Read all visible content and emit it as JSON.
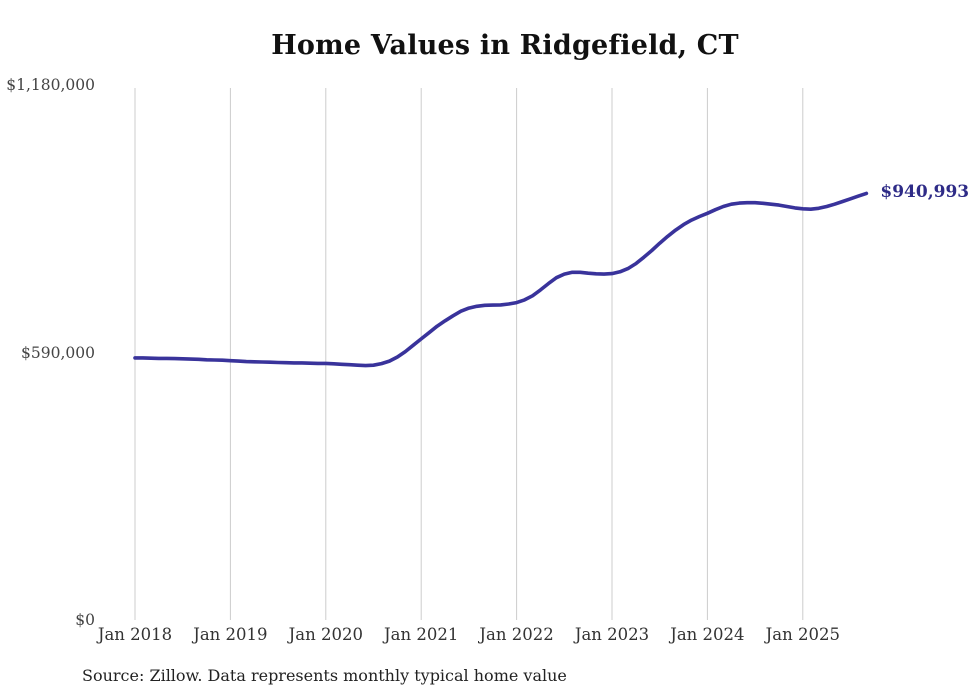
{
  "source_note": "Source: Zillow. Data represents monthly typical home value",
  "colors": {
    "line": "#39339b",
    "annotation": "#2e2b87",
    "grid": "#cccccc",
    "title_text": "#111111",
    "axis_text": "#444444"
  },
  "chart_data": {
    "type": "line",
    "title": "Home Values in Ridgefield, CT",
    "xlabel": "",
    "ylabel": "",
    "ylim": [
      0,
      1180000
    ],
    "grid": "vertical-only",
    "legend": "none",
    "x_ticks": [
      "Jan 2018",
      "Jan 2019",
      "Jan 2020",
      "Jan 2021",
      "Jan 2022",
      "Jan 2023",
      "Jan 2024",
      "Jan 2025"
    ],
    "y_ticks": [
      {
        "value": 0,
        "label": "$0"
      },
      {
        "value": 590000,
        "label": "$590,000"
      },
      {
        "value": 1180000,
        "label": "$1,180,000"
      }
    ],
    "last_value_label": "$940,993",
    "series": [
      {
        "name": "Typical home value",
        "start_month": "Jan 2018",
        "end_month": "Sep 2025",
        "values": [
          578000,
          578000,
          577500,
          577000,
          577000,
          576500,
          576000,
          575500,
          575000,
          574000,
          573500,
          573000,
          572000,
          571000,
          570000,
          569500,
          569000,
          568500,
          568000,
          567500,
          567000,
          567000,
          566500,
          566000,
          566000,
          565000,
          564000,
          563000,
          562000,
          561000,
          562000,
          565500,
          571000,
          580000,
          592000,
          606000,
          620000,
          634000,
          648000,
          660000,
          671000,
          681000,
          688000,
          692000,
          694000,
          694500,
          695000,
          697000,
          700000,
          706000,
          715000,
          728000,
          742000,
          755000,
          763000,
          767000,
          767000,
          765000,
          763500,
          763000,
          764000,
          768000,
          775000,
          786000,
          800000,
          815000,
          831000,
          846000,
          860000,
          872000,
          882000,
          890000,
          897000,
          905000,
          912000,
          917000,
          919500,
          920500,
          920500,
          919000,
          917000,
          915000,
          912000,
          909000,
          907000,
          906000,
          908000,
          912000,
          917000,
          923000,
          929000,
          935000,
          940993
        ]
      }
    ]
  }
}
